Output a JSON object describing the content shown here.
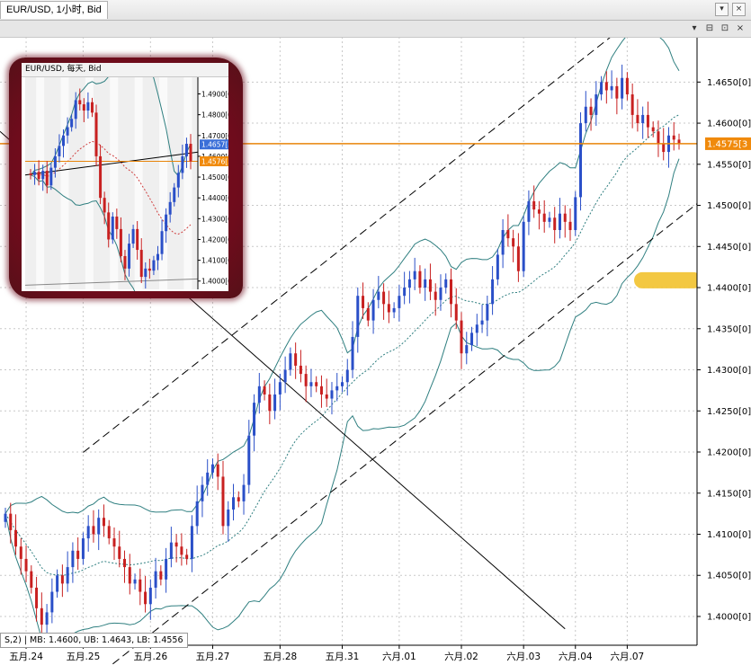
{
  "window": {
    "tab_label": "EUR/USD, 1小时, Bid",
    "buttons": [
      "▾",
      "×"
    ],
    "sub_buttons": [
      "▾",
      "⊟",
      "⊡",
      "×"
    ]
  },
  "status_text": "S,2) | MB: 1.4600, UB: 1.4643, LB: 1.4556",
  "chart_data": [
    {
      "type": "candlestick",
      "symbol": "EUR/USD",
      "timeframe": "1小时",
      "y_ticks": [
        "1.4650[0]",
        "1.4600[0]",
        "1.4550[0]",
        "1.4500[0]",
        "1.4450[0]",
        "1.4400[0]",
        "1.4350[0]",
        "1.4300[0]",
        "1.4250[0]",
        "1.4200[0]",
        "1.4150[0]",
        "1.4100[0]",
        "1.4050[0]",
        "1.4000[0]"
      ],
      "y_tick_values": [
        1.465,
        1.46,
        1.455,
        1.45,
        1.445,
        1.44,
        1.435,
        1.43,
        1.425,
        1.42,
        1.415,
        1.41,
        1.405,
        1.4
      ],
      "ylim": [
        1.3965,
        1.4705
      ],
      "x_ticks": [
        "五月.24",
        "五月.25",
        "五月.26",
        "五月.27",
        "五月.28",
        "五月.31",
        "六月.01",
        "六月.02",
        "六月.03",
        "六月.04",
        "六月.07"
      ],
      "x_tick_index": [
        4,
        15,
        28,
        40,
        53,
        65,
        76,
        88,
        100,
        110,
        120
      ],
      "current_price": 1.4575,
      "current_price_label": "1.4575[3",
      "close": [
        1.4125,
        1.4105,
        1.4085,
        1.407,
        1.4055,
        1.4035,
        1.401,
        1.399,
        1.4005,
        1.403,
        1.405,
        1.404,
        1.406,
        1.408,
        1.407,
        1.4095,
        1.411,
        1.41,
        1.412,
        1.411,
        1.4095,
        1.4085,
        1.407,
        1.406,
        1.404,
        1.4045,
        1.403,
        1.4015,
        1.4035,
        1.4055,
        1.4045,
        1.407,
        1.409,
        1.4085,
        1.4075,
        1.407,
        1.411,
        1.414,
        1.416,
        1.4175,
        1.4185,
        1.417,
        1.411,
        1.413,
        1.4145,
        1.414,
        1.416,
        1.422,
        1.426,
        1.428,
        1.427,
        1.425,
        1.427,
        1.4285,
        1.43,
        1.432,
        1.4305,
        1.4295,
        1.428,
        1.4285,
        1.428,
        1.427,
        1.4265,
        1.4275,
        1.428,
        1.4285,
        1.43,
        1.434,
        1.439,
        1.4375,
        1.436,
        1.4385,
        1.4395,
        1.438,
        1.437,
        1.4375,
        1.439,
        1.44,
        1.441,
        1.442,
        1.44,
        1.441,
        1.4395,
        1.4385,
        1.44,
        1.441,
        1.438,
        1.436,
        1.432,
        1.433,
        1.4345,
        1.4355,
        1.436,
        1.438,
        1.441,
        1.444,
        1.447,
        1.446,
        1.445,
        1.442,
        1.448,
        1.4505,
        1.4495,
        1.449,
        1.448,
        1.4485,
        1.447,
        1.449,
        1.448,
        1.447,
        1.451,
        1.46,
        1.462,
        1.461,
        1.4635,
        1.465,
        1.464,
        1.4645,
        1.463,
        1.4655,
        1.4635,
        1.461,
        1.46,
        1.461,
        1.4595,
        1.459,
        1.4575,
        1.4565,
        1.4585,
        1.458,
        1.4575
      ],
      "overlays": [
        "Bollinger Bands",
        "linear regression channel",
        "trend line"
      ],
      "inset": {
        "title": "EUR/USD, 每天, Bid",
        "type": "candlestick",
        "timeframe": "每天",
        "y_ticks": [
          "1.4900[0",
          "1.4800[0",
          "1.4700[0",
          "1.4600[0",
          "1.4500[0",
          "1.4400[0",
          "1.4300[0",
          "1.4200[0",
          "1.4100[0",
          "1.4000[0"
        ],
        "y_tick_values": [
          1.49,
          1.48,
          1.47,
          1.46,
          1.45,
          1.44,
          1.43,
          1.42,
          1.41,
          1.4
        ],
        "ylim": [
          1.396,
          1.498
        ],
        "price_labels": [
          "1.4657[3",
          "1.4576[3"
        ],
        "price_label_values": [
          1.4657,
          1.4576
        ],
        "close": [
          1.451,
          1.4525,
          1.449,
          1.453,
          1.446,
          1.4545,
          1.46,
          1.465,
          1.47,
          1.474,
          1.478,
          1.487,
          1.485,
          1.482,
          1.486,
          1.481,
          1.46,
          1.44,
          1.433,
          1.42,
          1.431,
          1.425,
          1.412,
          1.406,
          1.418,
          1.425,
          1.415,
          1.402,
          1.406,
          1.405,
          1.41,
          1.413,
          1.424,
          1.432,
          1.438,
          1.445,
          1.452,
          1.46,
          1.466,
          1.4576
        ]
      }
    }
  ]
}
